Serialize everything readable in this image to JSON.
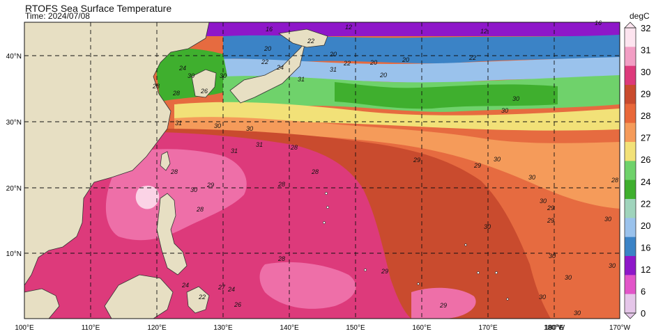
{
  "title": "RTOFS Sea Surface Temperature",
  "subtitle": "Time: 2024/07/08",
  "colorbar": {
    "unit": "degC",
    "ticks": [
      "32",
      "31",
      "30",
      "29",
      "28",
      "27",
      "26",
      "24",
      "22",
      "20",
      "16",
      "12",
      "6",
      "0"
    ],
    "colors": [
      "#fde4ef",
      "#f29ec4",
      "#dd3a7b",
      "#c94b2e",
      "#e9683a",
      "#f59b5a",
      "#f2e178",
      "#6fd26b",
      "#3faf2e",
      "#9fd4bc",
      "#9ac2ec",
      "#3b83c6",
      "#8e17c9",
      "#e255c9",
      "#e5c6e9"
    ]
  },
  "lon_labels": [
    "100°E",
    "110°E",
    "120°E",
    "130°E",
    "140°E",
    "150°E",
    "160°E",
    "170°E",
    "180°W",
    "180°E",
    "170°W"
  ],
  "lat_labels": [
    "40°N",
    "30°N",
    "20°N",
    "10°N"
  ],
  "contour_labels": [
    "16",
    "12",
    "12",
    "16",
    "20",
    "22",
    "20",
    "20",
    "22",
    "24",
    "22",
    "20",
    "20",
    "22",
    "24",
    "26",
    "28",
    "28",
    "30",
    "30",
    "31",
    "31",
    "31",
    "30",
    "30",
    "31",
    "31",
    "30",
    "29",
    "28",
    "28",
    "28",
    "28",
    "28",
    "29",
    "29",
    "30",
    "30",
    "30",
    "29",
    "29",
    "30",
    "30",
    "30",
    "30",
    "30",
    "30",
    "29",
    "29",
    "28",
    "27",
    "24",
    "26",
    "24",
    "22",
    "28",
    "30",
    "30",
    "30"
  ]
}
